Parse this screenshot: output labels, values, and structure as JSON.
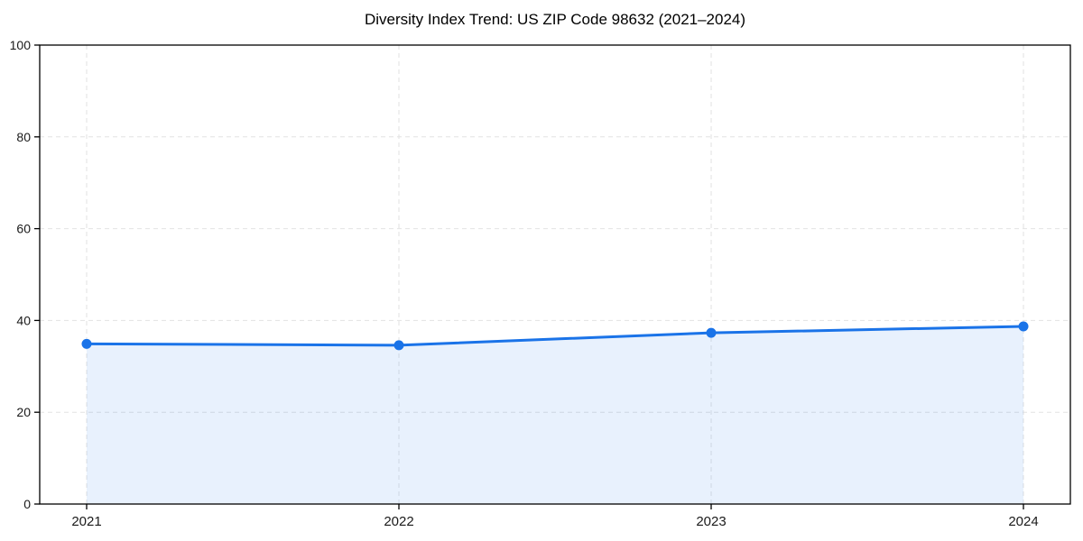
{
  "page": {
    "background_color": "#ffffff"
  },
  "chart_data": {
    "type": "line",
    "title": "Diversity Index Trend: US ZIP Code 98632 (2021–2024)",
    "x": [
      "2021",
      "2022",
      "2023",
      "2024"
    ],
    "series": [
      {
        "name": "Diversity Index",
        "values": [
          34.9,
          34.6,
          37.3,
          38.7
        ]
      }
    ],
    "xlabel": "",
    "ylabel": "",
    "ylim": [
      0,
      100
    ],
    "yticks": [
      0,
      20,
      40,
      60,
      80,
      100
    ],
    "grid": true,
    "grid_style": "dashed",
    "legend_position": "none",
    "markers": true,
    "area_fill": true,
    "line_color": "#1a73e8",
    "fill_color": "#1a73e8",
    "fill_opacity": 0.1,
    "grid_color": "#e2e2e2",
    "axis_color": "#000000",
    "text_color": "#1a1a1a"
  }
}
